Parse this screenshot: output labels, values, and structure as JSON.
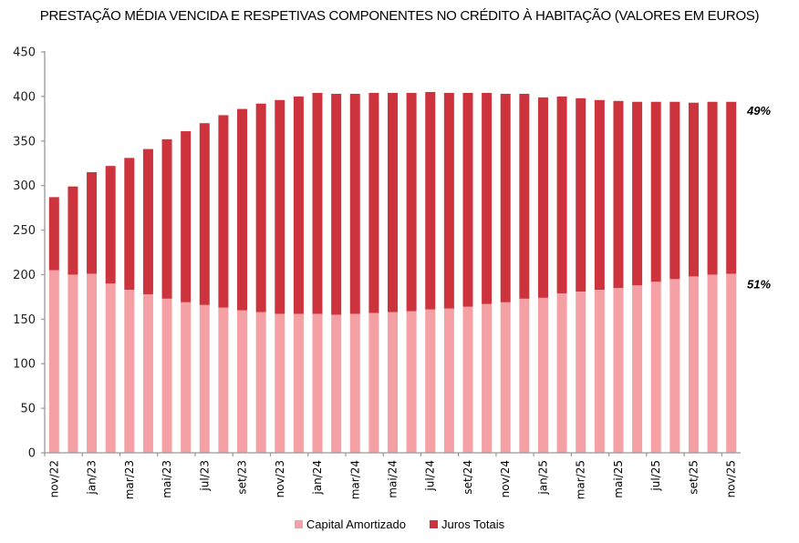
{
  "chart_data": {
    "type": "bar",
    "stacked": true,
    "title": "PRESTAÇÃO MÉDIA VENCIDA E RESPETIVAS COMPONENTES NO CRÉDITO À HABITAÇÃO (VALORES EM EUROS)",
    "xlabel": "",
    "ylabel": "",
    "ylim": [
      0,
      450
    ],
    "yticks": [
      0,
      50,
      100,
      150,
      200,
      250,
      300,
      350,
      400,
      450
    ],
    "grid": false,
    "legend_position": "bottom",
    "categories": [
      "nov/22",
      "dez/22",
      "jan/23",
      "fev/23",
      "mar/23",
      "abr/23",
      "mai/23",
      "jun/23",
      "jul/23",
      "ago/23",
      "set/23",
      "out/23",
      "nov/23",
      "dez/23",
      "jan/24",
      "fev/24",
      "mar/24",
      "abr/24",
      "mai/24",
      "jun/24",
      "jul/24",
      "ago/24",
      "set/24",
      "out/24",
      "nov/24",
      "dez/24",
      "jan/25",
      "fev/25",
      "mar/25",
      "abr/25",
      "mai/25",
      "jun/25",
      "jul/25",
      "ago/25",
      "set/25",
      "out/25",
      "nov/25"
    ],
    "xtick_labels": [
      "nov/22",
      "jan/23",
      "mar/23",
      "mai/23",
      "jul/23",
      "set/23",
      "nov/23",
      "jan/24",
      "mar/24",
      "mai/24",
      "jul/24",
      "set/24",
      "nov/24",
      "jan/25",
      "mar/25",
      "mai/25",
      "jul/25",
      "set/25",
      "nov/25"
    ],
    "series": [
      {
        "name": "Capital Amortizado",
        "color": "#f4a0a4",
        "values": [
          205,
          200,
          201,
          190,
          183,
          178,
          173,
          169,
          166,
          163,
          160,
          158,
          156,
          156,
          156,
          155,
          156,
          157,
          158,
          159,
          161,
          162,
          164,
          167,
          169,
          173,
          174,
          179,
          181,
          183,
          185,
          188,
          192,
          195,
          198,
          200,
          201
        ]
      },
      {
        "name": "Juros Totais",
        "color": "#cc333d",
        "values": [
          82,
          99,
          114,
          132,
          148,
          163,
          179,
          192,
          204,
          216,
          226,
          234,
          240,
          244,
          248,
          248,
          247,
          247,
          246,
          245,
          244,
          242,
          240,
          237,
          234,
          230,
          225,
          221,
          217,
          213,
          210,
          206,
          202,
          199,
          195,
          194,
          193
        ]
      }
    ],
    "annotations": [
      {
        "text": "49%",
        "series": "Juros Totais"
      },
      {
        "text": "51%",
        "series": "Capital Amortizado"
      }
    ]
  }
}
